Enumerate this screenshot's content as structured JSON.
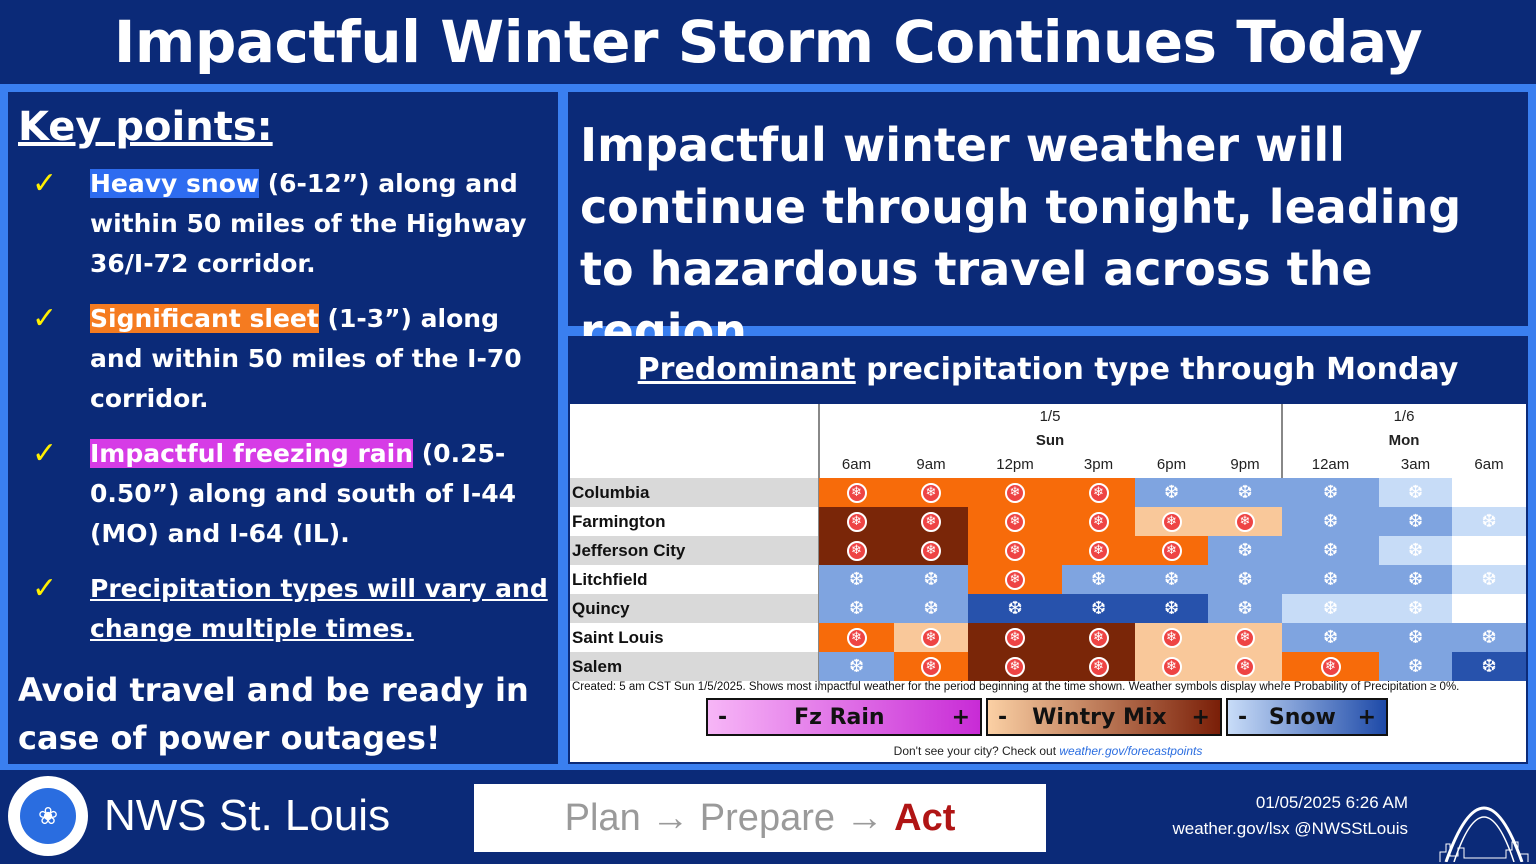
{
  "title": "Impactful Winter Storm Continues Today",
  "key_points": {
    "heading": "Key points:",
    "items": [
      {
        "highlight": "Heavy snow",
        "rest": " (6-12”) along and within 50 miles of the Highway 36/I-72 corridor."
      },
      {
        "highlight": "Significant sleet",
        "rest": " (1-3”) along and within 50 miles of the I-70 corridor."
      },
      {
        "highlight": "Impactful freezing rain",
        "rest": " (0.25-0.50”) along and south of I-44 (MO) and I-64 (IL)."
      },
      {
        "text": "Precipitation types will vary and change multiple times."
      }
    ],
    "check": "✓",
    "footer": "Avoid travel and be ready in case of power outages!"
  },
  "summary": "Impactful winter weather will continue through tonight, leading to hazardous travel across the region.",
  "precip": {
    "title_underlined": "Predominant",
    "title_rest": " precipitation type through Monday",
    "dates": [
      {
        "date": "1/5",
        "day": "Sun"
      },
      {
        "date": "1/6",
        "day": "Mon"
      }
    ],
    "times": [
      "6am",
      "9am",
      "12pm",
      "3pm",
      "6pm",
      "9pm",
      "12am",
      "3am",
      "6am"
    ],
    "cities": [
      "Columbia",
      "Farmington",
      "Jefferson City",
      "Litchfield",
      "Quincy",
      "Saint Louis",
      "Salem"
    ],
    "grid": [
      [
        "wm-med",
        "wm-med",
        "wm-med",
        "wm-med",
        "sn-med",
        "sn-med",
        "sn-med",
        "sn-light",
        ""
      ],
      [
        "wm-dark",
        "wm-dark",
        "wm-med",
        "wm-med",
        "wm-light",
        "wm-light",
        "sn-med",
        "sn-med",
        "sn-light"
      ],
      [
        "wm-dark",
        "wm-dark",
        "wm-med",
        "wm-med",
        "wm-med",
        "sn-med",
        "sn-med",
        "sn-light",
        ""
      ],
      [
        "sn-med",
        "sn-med",
        "wm-med",
        "sn-med",
        "sn-med",
        "sn-med",
        "sn-med",
        "sn-med",
        "sn-light"
      ],
      [
        "sn-med",
        "sn-med",
        "sn-dark",
        "sn-dark",
        "sn-dark",
        "sn-med",
        "sn-light",
        "sn-light",
        ""
      ],
      [
        "wm-med",
        "wm-light",
        "wm-dark",
        "wm-dark",
        "wm-light",
        "wm-light",
        "sn-med",
        "sn-med",
        "sn-med"
      ],
      [
        "sn-med",
        "wm-med",
        "wm-dark",
        "wm-dark",
        "wm-light",
        "wm-light",
        "wm-med",
        "sn-med",
        "sn-dark"
      ]
    ],
    "colors": {
      "wm-light": "#f9c89a",
      "wm-med": "#f76b0a",
      "wm-dark": "#7a2608",
      "sn-light": "#c7dcf7",
      "sn-med": "#7fa4e0",
      "sn-dark": "#2752ac"
    },
    "created_note": "Created: 5 am CST Sun 1/5/2025. Shows most impactful weather for the period beginning at the time shown. Weather symbols display where Probability of Precipitation ≥ 0%.",
    "legend": [
      {
        "minus": "-",
        "label": "Fz Rain",
        "plus": "+"
      },
      {
        "minus": "-",
        "label": "Wintry Mix",
        "plus": "+"
      },
      {
        "minus": "-",
        "label": "Snow",
        "plus": "+"
      }
    ],
    "dont_see": "Don't see your city? Check out ",
    "link": "weather.gov/forecastpoints"
  },
  "footer": {
    "office": "NWS St. Louis",
    "plan": "Plan → Prepare → ",
    "act": "Act",
    "datetime": "01/05/2025 6:26 AM",
    "contact": "weather.gov/lsx @NWSStLouis"
  }
}
